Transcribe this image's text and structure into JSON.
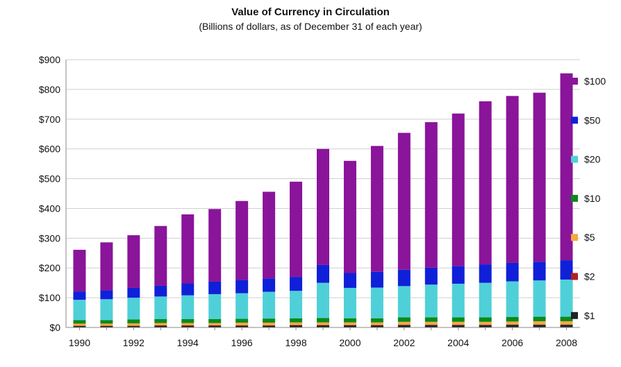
{
  "chart_data": {
    "type": "bar",
    "stacked": true,
    "title": "Value of Currency in Circulation",
    "subtitle": "(Billions of dollars, as of December 31 of each year)",
    "xlabel": "",
    "ylabel": "",
    "ylim": [
      0,
      900
    ],
    "yticks": [
      "$0",
      "$100",
      "$200",
      "$300",
      "$400",
      "$500",
      "$600",
      "$700",
      "$800",
      "$900"
    ],
    "ytick_values": [
      0,
      100,
      200,
      300,
      400,
      500,
      600,
      700,
      800,
      900
    ],
    "categories": [
      "1990",
      "1991",
      "1992",
      "1993",
      "1994",
      "1995",
      "1996",
      "1997",
      "1998",
      "1999",
      "2000",
      "2001",
      "2002",
      "2003",
      "2004",
      "2005",
      "2006",
      "2007",
      "2008"
    ],
    "xtick_labels": [
      "1990",
      "",
      "1992",
      "",
      "1994",
      "",
      "1996",
      "",
      "1998",
      "",
      "2000",
      "",
      "2002",
      "",
      "2004",
      "",
      "2006",
      "",
      "2008"
    ],
    "grid": true,
    "legend_position": "right",
    "series": [
      {
        "name": "$1",
        "color": "#222222",
        "values": [
          5,
          5,
          5,
          6,
          6,
          6,
          6,
          6,
          7,
          7,
          7,
          7,
          8,
          8,
          8,
          8,
          9,
          9,
          9
        ]
      },
      {
        "name": "$2",
        "color": "#b22222",
        "values": [
          1,
          1,
          1,
          1,
          1,
          1,
          1,
          1,
          1,
          1,
          1,
          1,
          1,
          1,
          1,
          1,
          1,
          1,
          1
        ]
      },
      {
        "name": "$5",
        "color": "#f4a742",
        "values": [
          7,
          7,
          8,
          8,
          8,
          8,
          9,
          9,
          9,
          9,
          9,
          9,
          10,
          10,
          10,
          10,
          10,
          11,
          11
        ]
      },
      {
        "name": "$10",
        "color": "#0a8a1a",
        "values": [
          12,
          12,
          13,
          13,
          13,
          13,
          13,
          14,
          14,
          15,
          14,
          14,
          15,
          15,
          15,
          15,
          15,
          15,
          15
        ]
      },
      {
        "name": "$20",
        "color": "#4fd0d8",
        "values": [
          68,
          70,
          73,
          76,
          80,
          84,
          86,
          90,
          92,
          118,
          102,
          103,
          105,
          110,
          113,
          116,
          120,
          122,
          125
        ]
      },
      {
        "name": "$50",
        "color": "#1020d8",
        "values": [
          28,
          30,
          33,
          36,
          40,
          42,
          45,
          45,
          47,
          60,
          50,
          53,
          55,
          57,
          59,
          62,
          62,
          63,
          65
        ]
      },
      {
        "name": "$100",
        "color": "#8a149a",
        "values": [
          140,
          161,
          177,
          201,
          232,
          244,
          265,
          291,
          320,
          390,
          377,
          423,
          460,
          489,
          513,
          548,
          561,
          568,
          628
        ]
      }
    ]
  }
}
